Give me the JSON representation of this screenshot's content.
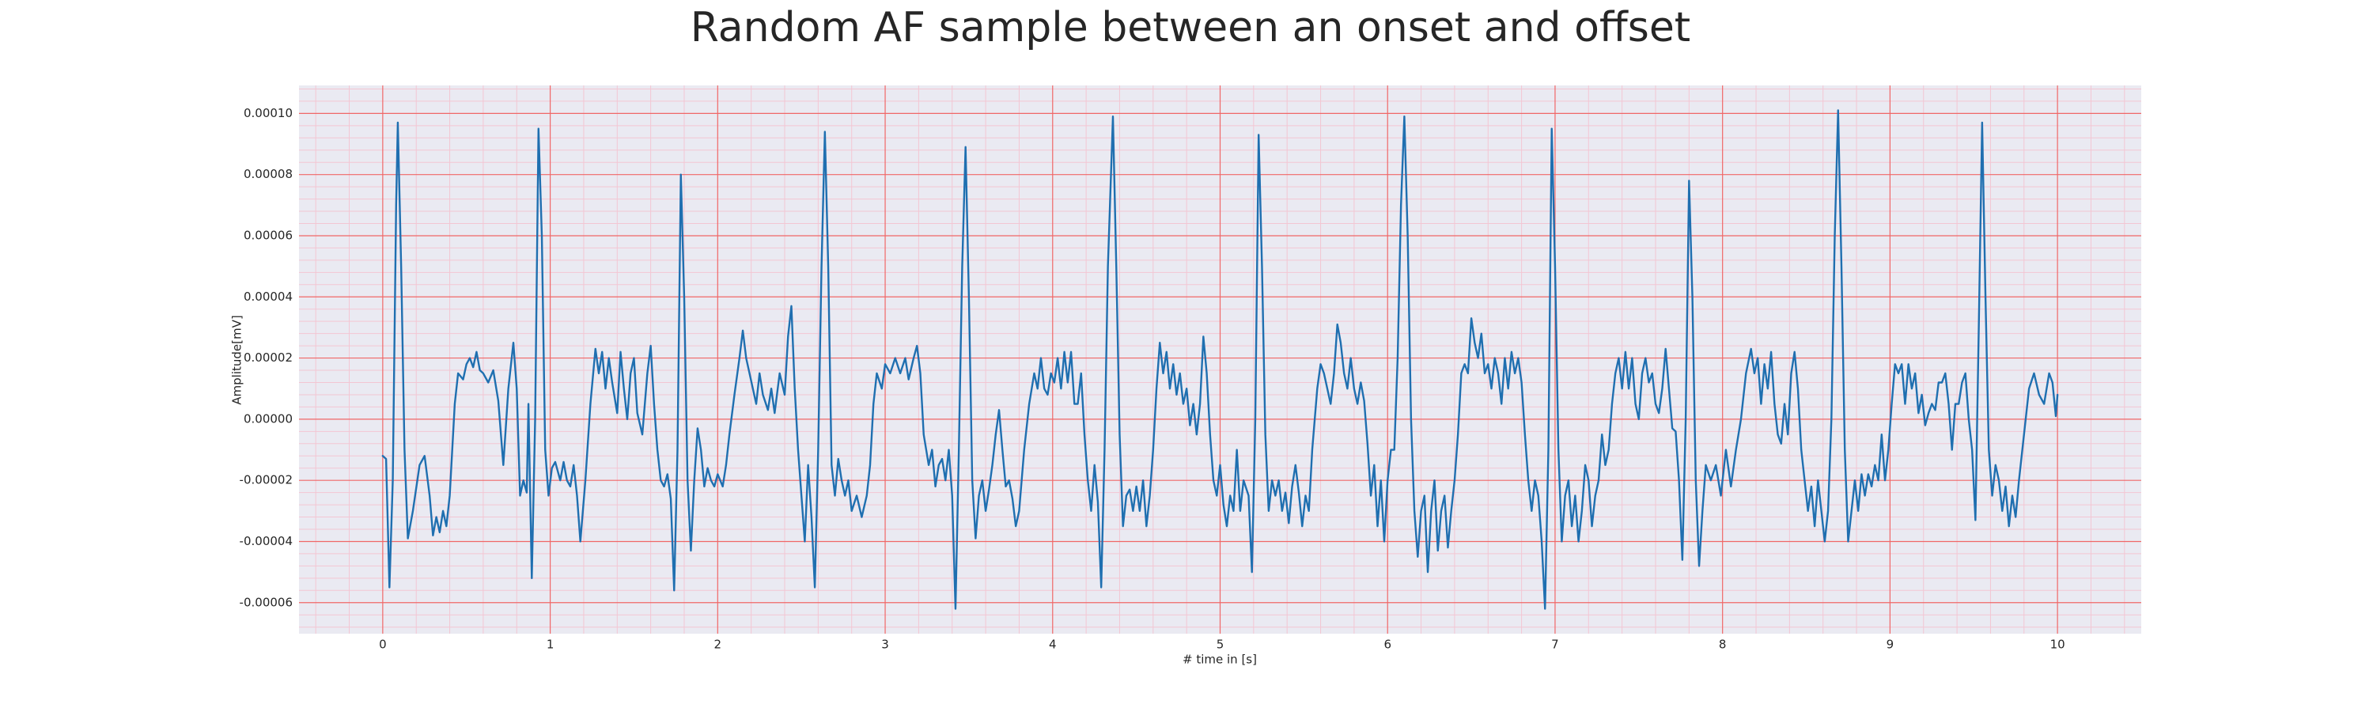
{
  "chart_data": {
    "type": "line",
    "title": "Random AF sample between an onset and offset",
    "x_label": "# time in [s]",
    "y_label": "Amplitude[mV]",
    "color": "#1f6fb0",
    "grid": true,
    "xlim": [
      -0.5,
      10.5
    ],
    "xticks": [
      0,
      1,
      2,
      3,
      4,
      5,
      6,
      7,
      8,
      9,
      10
    ],
    "ylim": [
      -7.015e-05,
      0.00010915
    ],
    "yticks": [
      {
        "value": -6e-05,
        "label": "-0.00006"
      },
      {
        "value": -4e-05,
        "label": "-0.00004"
      },
      {
        "value": -2e-05,
        "label": "-0.00002"
      },
      {
        "value": 0,
        "label": "0.00000"
      },
      {
        "value": 2e-05,
        "label": "0.00002"
      },
      {
        "value": 4e-05,
        "label": "0.00004"
      },
      {
        "value": 6e-05,
        "label": "0.00006"
      },
      {
        "value": 8e-05,
        "label": "0.00008"
      },
      {
        "value": 0.0001,
        "label": "0.00010"
      }
    ],
    "x": [
      0,
      0.02,
      0.04,
      0.06,
      0.08,
      0.09,
      0.11,
      0.13,
      0.15,
      0.18,
      0.22,
      0.25,
      0.28,
      0.3,
      0.32,
      0.34,
      0.36,
      0.38,
      0.4,
      0.43,
      0.45,
      0.48,
      0.5,
      0.52,
      0.54,
      0.56,
      0.58,
      0.6,
      0.63,
      0.66,
      0.69,
      0.72,
      0.75,
      0.78,
      0.8,
      0.82,
      0.84,
      0.86,
      0.87,
      0.89,
      0.91,
      0.93,
      0.95,
      0.97,
      0.99,
      1.01,
      1.03,
      1.06,
      1.08,
      1.1,
      1.12,
      1.14,
      1.16,
      1.18,
      1.21,
      1.24,
      1.27,
      1.29,
      1.31,
      1.33,
      1.35,
      1.37,
      1.4,
      1.42,
      1.44,
      1.46,
      1.48,
      1.5,
      1.52,
      1.55,
      1.58,
      1.6,
      1.62,
      1.64,
      1.66,
      1.68,
      1.7,
      1.72,
      1.74,
      1.76,
      1.78,
      1.8,
      1.82,
      1.84,
      1.86,
      1.88,
      1.9,
      1.92,
      1.94,
      1.96,
      1.98,
      2,
      2.03,
      2.05,
      2.07,
      2.1,
      2.13,
      2.15,
      2.17,
      2.19,
      2.21,
      2.23,
      2.25,
      2.27,
      2.3,
      2.32,
      2.34,
      2.37,
      2.4,
      2.42,
      2.44,
      2.46,
      2.48,
      2.5,
      2.52,
      2.54,
      2.56,
      2.58,
      2.6,
      2.62,
      2.64,
      2.66,
      2.68,
      2.7,
      2.72,
      2.74,
      2.76,
      2.78,
      2.8,
      2.83,
      2.86,
      2.89,
      2.91,
      2.93,
      2.95,
      2.98,
      3,
      3.03,
      3.06,
      3.09,
      3.12,
      3.14,
      3.17,
      3.19,
      3.21,
      3.23,
      3.26,
      3.28,
      3.3,
      3.32,
      3.34,
      3.36,
      3.38,
      3.4,
      3.42,
      3.44,
      3.46,
      3.48,
      3.5,
      3.52,
      3.54,
      3.56,
      3.58,
      3.6,
      3.62,
      3.64,
      3.66,
      3.68,
      3.7,
      3.72,
      3.74,
      3.76,
      3.78,
      3.8,
      3.83,
      3.86,
      3.89,
      3.91,
      3.93,
      3.95,
      3.97,
      3.99,
      4.01,
      4.03,
      4.05,
      4.07,
      4.09,
      4.11,
      4.13,
      4.15,
      4.17,
      4.19,
      4.21,
      4.23,
      4.25,
      4.27,
      4.29,
      4.31,
      4.33,
      4.36,
      4.38,
      4.4,
      4.42,
      4.44,
      4.46,
      4.48,
      4.5,
      4.52,
      4.54,
      4.56,
      4.58,
      4.6,
      4.62,
      4.64,
      4.66,
      4.68,
      4.7,
      4.72,
      4.74,
      4.76,
      4.78,
      4.8,
      4.82,
      4.84,
      4.86,
      4.88,
      4.9,
      4.92,
      4.94,
      4.96,
      4.98,
      5,
      5.02,
      5.04,
      5.06,
      5.08,
      5.1,
      5.12,
      5.14,
      5.17,
      5.19,
      5.21,
      5.23,
      5.25,
      5.27,
      5.29,
      5.31,
      5.33,
      5.35,
      5.37,
      5.39,
      5.41,
      5.43,
      5.45,
      5.47,
      5.49,
      5.51,
      5.53,
      5.55,
      5.58,
      5.6,
      5.62,
      5.64,
      5.66,
      5.68,
      5.7,
      5.72,
      5.74,
      5.76,
      5.78,
      5.8,
      5.82,
      5.84,
      5.86,
      5.88,
      5.9,
      5.92,
      5.94,
      5.96,
      5.98,
      6,
      6.02,
      6.04,
      6.06,
      6.08,
      6.1,
      6.12,
      6.14,
      6.16,
      6.18,
      6.2,
      6.22,
      6.24,
      6.26,
      6.28,
      6.3,
      6.32,
      6.34,
      6.36,
      6.38,
      6.4,
      6.42,
      6.44,
      6.46,
      6.48,
      6.5,
      6.52,
      6.54,
      6.56,
      6.58,
      6.6,
      6.62,
      6.64,
      6.66,
      6.68,
      6.7,
      6.72,
      6.74,
      6.76,
      6.78,
      6.8,
      6.82,
      6.84,
      6.86,
      6.88,
      6.9,
      6.92,
      6.94,
      6.96,
      6.98,
      7,
      7.02,
      7.04,
      7.06,
      7.08,
      7.1,
      7.12,
      7.14,
      7.16,
      7.18,
      7.2,
      7.22,
      7.24,
      7.26,
      7.28,
      7.3,
      7.32,
      7.34,
      7.36,
      7.38,
      7.4,
      7.42,
      7.44,
      7.46,
      7.48,
      7.5,
      7.52,
      7.54,
      7.56,
      7.58,
      7.6,
      7.62,
      7.64,
      7.66,
      7.68,
      7.7,
      7.72,
      7.74,
      7.76,
      7.78,
      7.8,
      7.82,
      7.84,
      7.86,
      7.88,
      7.9,
      7.93,
      7.96,
      7.99,
      8.02,
      8.05,
      8.08,
      8.11,
      8.14,
      8.17,
      8.19,
      8.21,
      8.23,
      8.25,
      8.27,
      8.29,
      8.31,
      8.33,
      8.35,
      8.37,
      8.39,
      8.41,
      8.43,
      8.45,
      8.47,
      8.49,
      8.51,
      8.53,
      8.55,
      8.57,
      8.59,
      8.61,
      8.63,
      8.65,
      8.67,
      8.69,
      8.71,
      8.73,
      8.75,
      8.77,
      8.79,
      8.81,
      8.83,
      8.85,
      8.87,
      8.89,
      8.91,
      8.93,
      8.95,
      8.97,
      8.99,
      9.01,
      9.03,
      9.05,
      9.07,
      9.09,
      9.11,
      9.13,
      9.15,
      9.17,
      9.19,
      9.21,
      9.23,
      9.25,
      9.27,
      9.29,
      9.31,
      9.33,
      9.35,
      9.37,
      9.39,
      9.41,
      9.43,
      9.45,
      9.47,
      9.49,
      9.51,
      9.53,
      9.55,
      9.57,
      9.59,
      9.61,
      9.63,
      9.65,
      9.67,
      9.69,
      9.71,
      9.73,
      9.75,
      9.77,
      9.8,
      9.83,
      9.86,
      9.89,
      9.92,
      9.95,
      9.97,
      9.99,
      10
    ],
    "values": [
      -1.2e-05,
      -1.3e-05,
      -5.5e-05,
      -2e-05,
      7e-05,
      9.7e-05,
      5e-05,
      -1e-05,
      -3.9e-05,
      -3e-05,
      -1.5e-05,
      -1.2e-05,
      -2.5e-05,
      -3.8e-05,
      -3.2e-05,
      -3.7e-05,
      -3e-05,
      -3.5e-05,
      -2.5e-05,
      5e-06,
      1.5e-05,
      1.3e-05,
      1.8e-05,
      2e-05,
      1.7e-05,
      2.2e-05,
      1.6e-05,
      1.5e-05,
      1.2e-05,
      1.6e-05,
      6e-06,
      -1.5e-05,
      1e-05,
      2.5e-05,
      1e-05,
      -2.5e-05,
      -2e-05,
      -2.4e-05,
      5e-06,
      -5.2e-05,
      0,
      9.5e-05,
      6e-05,
      -1e-05,
      -2.5e-05,
      -1.6e-05,
      -1.4e-05,
      -2e-05,
      -1.4e-05,
      -2e-05,
      -2.2e-05,
      -1.5e-05,
      -2.5e-05,
      -4e-05,
      -2e-05,
      5e-06,
      2.3e-05,
      1.5e-05,
      2.2e-05,
      1e-05,
      2e-05,
      1.2e-05,
      2e-06,
      2.2e-05,
      1e-05,
      0,
      1.5e-05,
      2e-05,
      2e-06,
      -5e-06,
      1.5e-05,
      2.4e-05,
      5e-06,
      -1e-05,
      -2e-05,
      -2.2e-05,
      -1.8e-05,
      -2.6e-05,
      -5.6e-05,
      -1e-05,
      8e-05,
      4e-05,
      -2e-05,
      -4.3e-05,
      -2e-05,
      -3e-06,
      -1e-05,
      -2.2e-05,
      -1.6e-05,
      -2e-05,
      -2.2e-05,
      -1.8e-05,
      -2.2e-05,
      -1.5e-05,
      -5e-06,
      8e-06,
      2e-05,
      2.9e-05,
      2e-05,
      1.5e-05,
      1e-05,
      5e-06,
      1.5e-05,
      8e-06,
      3e-06,
      1e-05,
      2e-06,
      1.5e-05,
      8e-06,
      2.7e-05,
      3.7e-05,
      1e-05,
      -1e-05,
      -2.5e-05,
      -4e-05,
      -1.5e-05,
      -3.2e-05,
      -5.5e-05,
      -1e-05,
      5e-05,
      9.4e-05,
      5e-05,
      -1.5e-05,
      -2.5e-05,
      -1.3e-05,
      -2e-05,
      -2.5e-05,
      -2e-05,
      -3e-05,
      -2.5e-05,
      -3.2e-05,
      -2.5e-05,
      -1.5e-05,
      5e-06,
      1.5e-05,
      1e-05,
      1.8e-05,
      1.5e-05,
      2e-05,
      1.5e-05,
      2e-05,
      1.3e-05,
      2e-05,
      2.4e-05,
      1.5e-05,
      -5e-06,
      -1.5e-05,
      -1e-05,
      -2.2e-05,
      -1.5e-05,
      -1.3e-05,
      -2e-05,
      -1e-05,
      -2.5e-05,
      -6.2e-05,
      -1e-05,
      5e-05,
      8.9e-05,
      4e-05,
      -2e-05,
      -3.9e-05,
      -2.5e-05,
      -2e-05,
      -3e-05,
      -2.3e-05,
      -1.5e-05,
      -5e-06,
      3e-06,
      -1e-05,
      -2.2e-05,
      -2e-05,
      -2.6e-05,
      -3.5e-05,
      -3e-05,
      -1e-05,
      5e-06,
      1.5e-05,
      1e-05,
      2e-05,
      1e-05,
      8e-06,
      1.5e-05,
      1.2e-05,
      2e-05,
      1e-05,
      2.2e-05,
      1.2e-05,
      2.2e-05,
      5e-06,
      5e-06,
      1.5e-05,
      -5e-06,
      -2e-05,
      -3e-05,
      -1.5e-05,
      -2.7e-05,
      -5.5e-05,
      -1e-05,
      5e-05,
      9.9e-05,
      5e-05,
      -5e-06,
      -3.5e-05,
      -2.5e-05,
      -2.3e-05,
      -3e-05,
      -2.2e-05,
      -3e-05,
      -2e-05,
      -3.5e-05,
      -2.5e-05,
      -1e-05,
      1e-05,
      2.5e-05,
      1.5e-05,
      2.2e-05,
      1e-05,
      1.8e-05,
      8e-06,
      1.5e-05,
      5e-06,
      1e-05,
      -2e-06,
      5e-06,
      -5e-06,
      5e-06,
      2.7e-05,
      1.5e-05,
      -5e-06,
      -2e-05,
      -2.5e-05,
      -1.5e-05,
      -2.8e-05,
      -3.5e-05,
      -2.5e-05,
      -3e-05,
      -1e-05,
      -3e-05,
      -2e-05,
      -2.5e-05,
      -5e-05,
      0,
      9.3e-05,
      5e-05,
      -5e-06,
      -3e-05,
      -2e-05,
      -2.5e-05,
      -2e-05,
      -3e-05,
      -2.4e-05,
      -3.4e-05,
      -2.2e-05,
      -1.5e-05,
      -2.4e-05,
      -3.5e-05,
      -2.5e-05,
      -3e-05,
      -1e-05,
      1e-05,
      1.8e-05,
      1.5e-05,
      1e-05,
      5e-06,
      1.5e-05,
      3.1e-05,
      2.5e-05,
      1.5e-05,
      1e-05,
      2e-05,
      1e-05,
      5e-06,
      1.2e-05,
      6e-06,
      -8e-06,
      -2.5e-05,
      -1.5e-05,
      -3.5e-05,
      -2e-05,
      -4e-05,
      -2e-05,
      -1e-05,
      -1e-05,
      2e-05,
      7e-05,
      9.9e-05,
      6e-05,
      0,
      -3e-05,
      -4.5e-05,
      -3e-05,
      -2.5e-05,
      -5e-05,
      -3e-05,
      -2e-05,
      -4.3e-05,
      -3e-05,
      -2.5e-05,
      -4.2e-05,
      -3e-05,
      -2e-05,
      -5e-06,
      1.5e-05,
      1.8e-05,
      1.5e-05,
      3.3e-05,
      2.5e-05,
      2e-05,
      2.8e-05,
      1.5e-05,
      1.8e-05,
      1e-05,
      2e-05,
      1.5e-05,
      5e-06,
      2e-05,
      1e-05,
      2.2e-05,
      1.5e-05,
      2e-05,
      1.2e-05,
      -5e-06,
      -2e-05,
      -3e-05,
      -2e-05,
      -2.5e-05,
      -4e-05,
      -6.2e-05,
      -1e-05,
      9.5e-05,
      5e-05,
      -1e-05,
      -4e-05,
      -2.5e-05,
      -2e-05,
      -3.5e-05,
      -2.5e-05,
      -4e-05,
      -3e-05,
      -1.5e-05,
      -2e-05,
      -3.5e-05,
      -2.5e-05,
      -2e-05,
      -5e-06,
      -1.5e-05,
      -1e-05,
      5e-06,
      1.5e-05,
      2e-05,
      1e-05,
      2.2e-05,
      1e-05,
      2e-05,
      5e-06,
      0,
      1.5e-05,
      2e-05,
      1.2e-05,
      1.5e-05,
      5e-06,
      2e-06,
      1e-05,
      2.3e-05,
      1e-05,
      -3e-06,
      -4e-06,
      -2e-05,
      -4.6e-05,
      0,
      7.8e-05,
      4e-05,
      -2e-05,
      -4.8e-05,
      -3e-05,
      -1.5e-05,
      -2e-05,
      -1.5e-05,
      -2.5e-05,
      -1e-05,
      -2.2e-05,
      -1e-05,
      0,
      1.5e-05,
      2.3e-05,
      1.5e-05,
      2e-05,
      5e-06,
      1.8e-05,
      1e-05,
      2.2e-05,
      5e-06,
      -5e-06,
      -8e-06,
      5e-06,
      -5e-06,
      1.5e-05,
      2.2e-05,
      1e-05,
      -1e-05,
      -2e-05,
      -3e-05,
      -2.2e-05,
      -3.5e-05,
      -2e-05,
      -3e-05,
      -4e-05,
      -3e-05,
      0,
      6e-05,
      0.000101,
      5e-05,
      -1e-05,
      -4e-05,
      -3e-05,
      -2e-05,
      -3e-05,
      -1.8e-05,
      -2.5e-05,
      -1.8e-05,
      -2.2e-05,
      -1.5e-05,
      -2e-05,
      -5e-06,
      -2e-05,
      -1e-05,
      5e-06,
      1.8e-05,
      1.5e-05,
      1.8e-05,
      5e-06,
      1.8e-05,
      1e-05,
      1.5e-05,
      2e-06,
      8e-06,
      -2e-06,
      2e-06,
      5e-06,
      3e-06,
      1.2e-05,
      1.2e-05,
      1.5e-05,
      5e-06,
      -1e-05,
      5e-06,
      5e-06,
      1.2e-05,
      1.5e-05,
      0,
      -1e-05,
      -3.3e-05,
      3e-05,
      9.7e-05,
      4e-05,
      -1e-05,
      -2.5e-05,
      -1.5e-05,
      -2e-05,
      -3e-05,
      -2.2e-05,
      -3.5e-05,
      -2.5e-05,
      -3.2e-05,
      -2e-05,
      -5e-06,
      1e-05,
      1.5e-05,
      8e-06,
      5e-06,
      1.5e-05,
      1.2e-05,
      1e-06,
      8e-06
    ]
  }
}
